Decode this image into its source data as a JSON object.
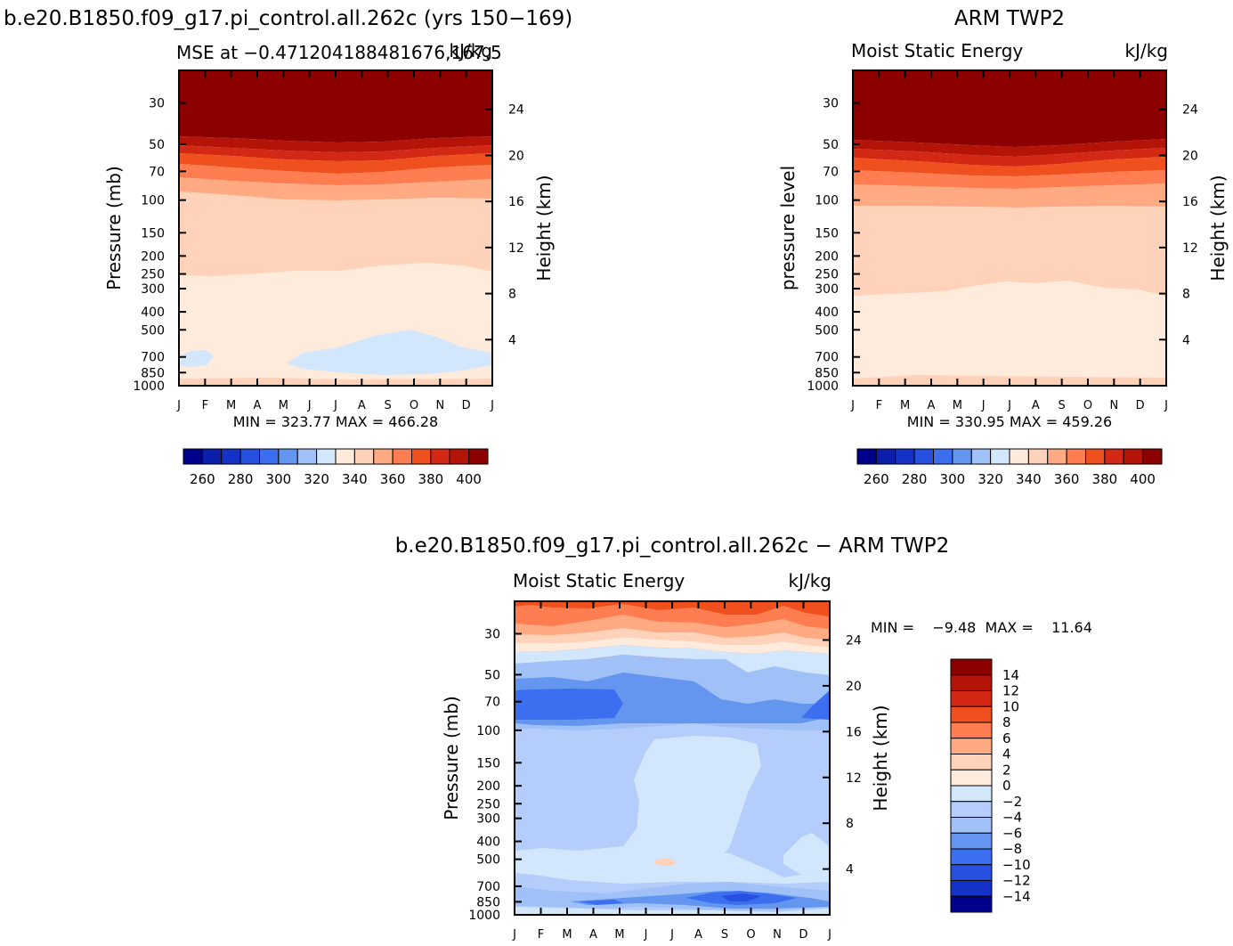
{
  "figure": {
    "title_left": "b.e20.B1850.f09_g17.pi_control.all.262c (yrs 150−169)",
    "title_right": "ARM TWP2",
    "title_bottom": "b.e20.B1850.f09_g17.pi_control.all.262c − ARM TWP2"
  },
  "chart_data": [
    {
      "type": "heatmap",
      "panel": "model",
      "left_label": "MSE at −0.471204188481676,167.5",
      "units": "kJ/kg",
      "xlabel": "",
      "ylabel": "Pressure (mb)",
      "ylabel_right": "Height (km)",
      "x_ticks": [
        "J",
        "F",
        "M",
        "A",
        "M",
        "J",
        "J",
        "A",
        "S",
        "O",
        "N",
        "D",
        "J"
      ],
      "y_ticks": [
        30,
        50,
        70,
        100,
        150,
        200,
        250,
        300,
        400,
        500,
        700,
        850,
        1000
      ],
      "y_ticks_right": [
        4,
        8,
        12,
        16,
        20,
        24
      ],
      "ylim": [
        1000,
        20
      ],
      "stats": "MIN = 323.77  MAX = 466.28",
      "min": 323.77,
      "max": 466.28
    },
    {
      "type": "heatmap",
      "panel": "observations",
      "left_label": "Moist Static Energy",
      "units": "kJ/kg",
      "xlabel": "",
      "ylabel": "pressure level",
      "ylabel_right": "Height (km)",
      "x_ticks": [
        "J",
        "F",
        "M",
        "A",
        "M",
        "J",
        "J",
        "A",
        "S",
        "O",
        "N",
        "D",
        "J"
      ],
      "y_ticks": [
        30,
        50,
        70,
        100,
        150,
        200,
        250,
        300,
        400,
        500,
        700,
        850,
        1000
      ],
      "y_ticks_right": [
        4,
        8,
        12,
        16,
        20,
        24
      ],
      "ylim": [
        1000,
        20
      ],
      "stats": "MIN = 330.95  MAX = 459.26",
      "min": 330.95,
      "max": 459.26
    },
    {
      "type": "heatmap",
      "panel": "difference",
      "left_label": "Moist Static Energy",
      "units": "kJ/kg",
      "xlabel": "",
      "ylabel": "Pressure (mb)",
      "ylabel_right": "Height (km)",
      "x_ticks": [
        "J",
        "F",
        "M",
        "A",
        "M",
        "J",
        "J",
        "A",
        "S",
        "O",
        "N",
        "D",
        "J"
      ],
      "y_ticks": [
        30,
        50,
        70,
        100,
        150,
        200,
        250,
        300,
        400,
        500,
        700,
        850,
        1000
      ],
      "y_ticks_right": [
        4,
        8,
        12,
        16,
        20,
        24
      ],
      "ylim": [
        1000,
        20
      ],
      "stats": "MIN =    −9.48  MAX =    11.64",
      "min": -9.48,
      "max": 11.64
    }
  ],
  "colorbar_mse": {
    "labels": [
      "260",
      "280",
      "300",
      "320",
      "340",
      "360",
      "380",
      "400"
    ],
    "colors": [
      "#00008c",
      "#0a1eaa",
      "#1432c8",
      "#2850e0",
      "#3c6ef0",
      "#6496f0",
      "#a0c0f8",
      "#d2e6fc",
      "#ffebdc",
      "#ffd2b9",
      "#ffaa82",
      "#ff7d50",
      "#f0501e",
      "#d22814",
      "#b41408",
      "#8c0000"
    ]
  },
  "colorbar_diff": {
    "labels": [
      "14",
      "12",
      "10",
      "8",
      "6",
      "4",
      "2",
      "0",
      "−2",
      "−4",
      "−6",
      "−8",
      "−10",
      "−12",
      "−14"
    ],
    "colors": [
      "#8c0000",
      "#b41408",
      "#d22814",
      "#f0501e",
      "#ff7d50",
      "#ffaa82",
      "#ffd2b9",
      "#ffebdc",
      "#d2e6fc",
      "#b4cdfa",
      "#a0c0f8",
      "#6496f0",
      "#3c6ef0",
      "#2850e0",
      "#1432c8",
      "#00008c"
    ]
  }
}
